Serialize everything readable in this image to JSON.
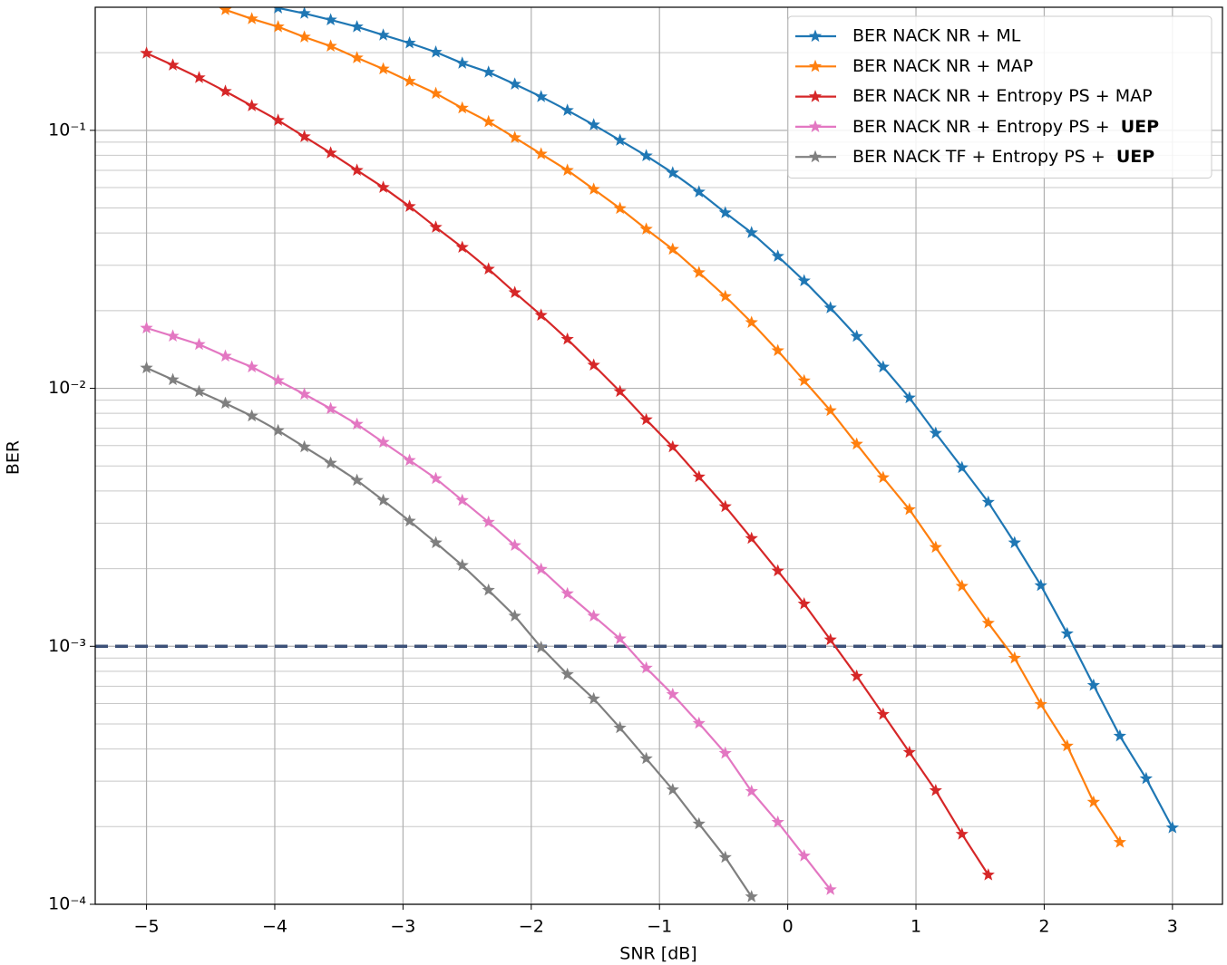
{
  "chart_data": {
    "type": "line",
    "xlabel": "SNR [dB]",
    "ylabel": "BER",
    "x": [
      -5,
      -4.795,
      -4.59,
      -4.385,
      -4.179,
      -3.974,
      -3.769,
      -3.564,
      -3.359,
      -3.154,
      -2.949,
      -2.744,
      -2.538,
      -2.333,
      -2.128,
      -1.923,
      -1.718,
      -1.513,
      -1.308,
      -1.103,
      -0.897,
      -0.692,
      -0.487,
      -0.282,
      -0.077,
      0.128,
      0.333,
      0.538,
      0.744,
      0.949,
      1.154,
      1.359,
      1.564,
      1.769,
      1.974,
      2.179,
      2.385,
      2.59,
      2.795,
      3.0
    ],
    "series": [
      {
        "name": "BER NACK NR + ML",
        "color": "#1f77b4",
        "values": [
          null,
          null,
          null,
          null,
          null,
          0.298,
          0.284,
          0.268,
          0.252,
          0.234,
          0.218,
          0.201,
          0.182,
          0.168,
          0.151,
          0.135,
          0.1195,
          0.105,
          0.0915,
          0.0797,
          0.0684,
          0.0577,
          0.0479,
          0.0401,
          0.0325,
          0.0261,
          0.0205,
          0.0159,
          0.0121,
          0.00919,
          0.0067,
          0.00493,
          0.00362,
          0.00252,
          0.00172,
          0.00112,
          0.000706,
          0.000449,
          0.000307,
          0.000198
        ]
      },
      {
        "name": "BER NACK NR + MAP",
        "color": "#ff7f0e",
        "values": [
          null,
          null,
          null,
          0.2934,
          0.2706,
          0.252,
          0.23,
          0.212,
          0.191,
          0.173,
          0.155,
          0.139,
          0.122,
          0.108,
          0.0937,
          0.081,
          0.07,
          0.0591,
          0.0498,
          0.0414,
          0.0346,
          0.0281,
          0.0227,
          0.018,
          0.014,
          0.0107,
          0.0082,
          0.00608,
          0.00451,
          0.00339,
          0.00242,
          0.00171,
          0.00123,
          0.0009,
          0.000596,
          0.000411,
          0.000249,
          0.000174,
          null,
          null
        ]
      },
      {
        "name": "BER NACK NR + Entropy PS + MAP",
        "color": "#d62728",
        "values": [
          0.199,
          0.179,
          0.16,
          0.1416,
          0.1244,
          0.1093,
          0.0945,
          0.0817,
          0.07,
          0.0601,
          0.0507,
          0.0421,
          0.0352,
          0.029,
          0.0235,
          0.0192,
          0.0155,
          0.0123,
          0.00972,
          0.00756,
          0.00593,
          0.00454,
          0.00348,
          0.00262,
          0.00196,
          0.00146,
          0.00106,
          0.000766,
          0.000545,
          0.000388,
          0.000276,
          0.000187,
          0.00013,
          null,
          null,
          null,
          null,
          null,
          null,
          null
        ]
      },
      {
        "name": "BER NACK NR + Entropy PS + UEP",
        "emphasis": "UEP",
        "color": "#e377c2",
        "values": [
          0.01713,
          0.01594,
          0.0148,
          0.01333,
          0.0121,
          0.01072,
          0.00949,
          0.00834,
          0.00726,
          0.00618,
          0.00526,
          0.00447,
          0.00368,
          0.00303,
          0.00246,
          0.00199,
          0.0016,
          0.00131,
          0.00107,
          0.000824,
          0.000651,
          0.000503,
          0.000385,
          0.000274,
          0.000208,
          0.000154,
          0.000114,
          null,
          null,
          null,
          null,
          null,
          null,
          null,
          null,
          null,
          null,
          null,
          null,
          null
        ]
      },
      {
        "name": "BER NACK TF + Entropy PS + UEP",
        "emphasis": "UEP",
        "color": "#7f7f7f",
        "values": [
          0.012,
          0.0108,
          0.00972,
          0.00875,
          0.00781,
          0.00686,
          0.00593,
          0.00513,
          0.0044,
          0.00368,
          0.00306,
          0.00252,
          0.00206,
          0.00165,
          0.00131,
          0.00099,
          0.000778,
          0.000626,
          0.000483,
          0.000367,
          0.000278,
          0.000205,
          0.000152,
          0.000107,
          null,
          null,
          null,
          null,
          null,
          null,
          null,
          null,
          null,
          null,
          null,
          null,
          null,
          null,
          null,
          null
        ]
      }
    ],
    "reference_line": {
      "value": 0.001,
      "color": "#3c5078",
      "dashed": true
    },
    "xlim": [
      -5.4,
      3.39
    ],
    "ylim": [
      0.0001,
      0.3
    ],
    "ylog": true,
    "xticks": [
      {
        "value": -5,
        "label": "−5"
      },
      {
        "value": -4,
        "label": "−4"
      },
      {
        "value": -3,
        "label": "−3"
      },
      {
        "value": -2,
        "label": "−2"
      },
      {
        "value": -1,
        "label": "−1"
      },
      0,
      1,
      2,
      3
    ],
    "yticks": [
      {
        "value": 0.0001,
        "label": "10⁻⁴"
      },
      {
        "value": 0.001,
        "label": "10⁻³"
      },
      {
        "value": 0.01,
        "label": "10⁻²"
      },
      {
        "value": 0.1,
        "label": "10⁻¹"
      }
    ],
    "yminor_ticks": [
      0.0002,
      0.0003,
      0.0004,
      0.0005,
      0.0006,
      0.0007,
      0.0008,
      0.0009,
      0.002,
      0.003,
      0.004,
      0.005,
      0.006,
      0.007,
      0.008,
      0.009,
      0.02,
      0.03,
      0.04,
      0.05,
      0.06,
      0.07,
      0.08,
      0.09,
      0.2,
      0.3
    ],
    "grid": true,
    "minor_grid": true,
    "legend": "upper right",
    "marker": "star"
  }
}
